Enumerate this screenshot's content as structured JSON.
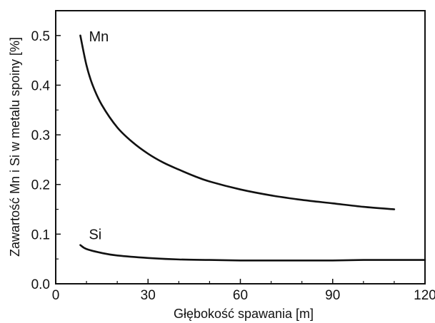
{
  "chart_data": {
    "type": "line",
    "xlabel": "Głębokość spawania [m]",
    "ylabel": "Zawartość Mn i Si w metalu spoiny [%]",
    "xlim": [
      0,
      120
    ],
    "ylim": [
      0,
      0.55
    ],
    "xticks": [
      0,
      30,
      60,
      90,
      120
    ],
    "xtick_labels": [
      "0",
      "30",
      "60",
      "90",
      "120"
    ],
    "yticks": [
      0.0,
      0.1,
      0.2,
      0.3,
      0.4,
      0.5
    ],
    "ytick_labels": [
      "0.0",
      "0.1",
      "0.2",
      "0.3",
      "0.4",
      "0.5"
    ],
    "grid": false,
    "legend": "none",
    "series": [
      {
        "name": "Mn",
        "color": "#111111",
        "x": [
          8,
          10,
          12,
          15,
          20,
          25,
          30,
          35,
          40,
          45,
          50,
          60,
          70,
          80,
          90,
          100,
          110
        ],
        "y": [
          0.5,
          0.44,
          0.4,
          0.36,
          0.315,
          0.285,
          0.262,
          0.244,
          0.23,
          0.217,
          0.206,
          0.19,
          0.178,
          0.169,
          0.162,
          0.155,
          0.15
        ]
      },
      {
        "name": "Si",
        "color": "#111111",
        "x": [
          8,
          10,
          15,
          20,
          30,
          40,
          50,
          60,
          70,
          80,
          90,
          100,
          110,
          120
        ],
        "y": [
          0.078,
          0.07,
          0.062,
          0.057,
          0.052,
          0.049,
          0.048,
          0.047,
          0.047,
          0.047,
          0.047,
          0.048,
          0.048,
          0.048
        ]
      }
    ]
  }
}
